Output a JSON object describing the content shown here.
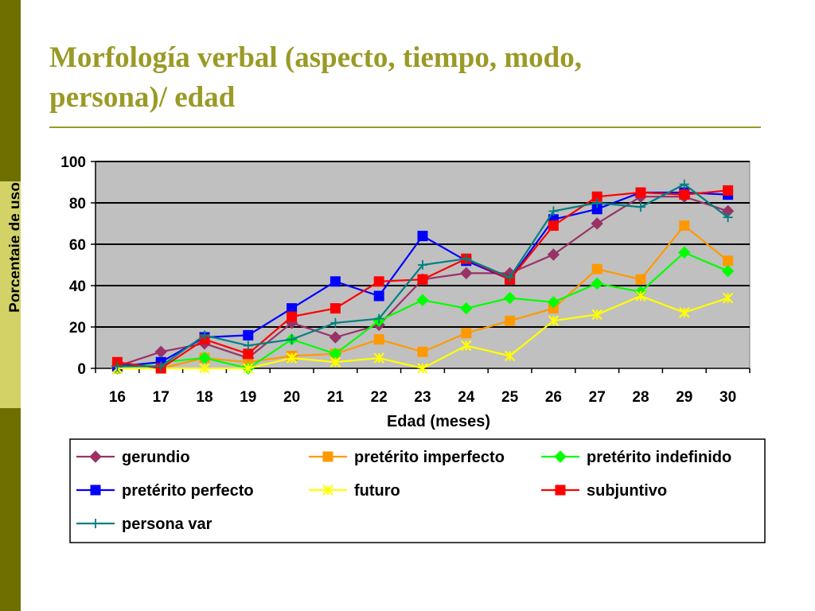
{
  "slide": {
    "title_line1": "Morfología verbal (aspecto, tiempo, modo,",
    "title_line2": "persona)/ edad",
    "y_label_clipped": "Porcentaje de uso",
    "colors": {
      "title": "#9a9a26",
      "rule": "#9a9a26",
      "strip_dark": "#6f6f00",
      "strip_light": "#d2d266"
    }
  },
  "chart_data": {
    "type": "line",
    "title": "",
    "xlabel": "Edad (meses)",
    "ylabel": "Porcentaje de uso",
    "ylim": [
      0,
      100
    ],
    "yticks": [
      0,
      20,
      40,
      60,
      80,
      100
    ],
    "grid": true,
    "plot_background": "#c0c0c0",
    "legend_position": "bottom",
    "x": [
      "16",
      "17",
      "18",
      "19",
      "20",
      "21",
      "22",
      "23",
      "24",
      "25",
      "26",
      "27",
      "28",
      "29",
      "30"
    ],
    "series": [
      {
        "name": "gerundio",
        "color": "#993366",
        "marker": "diamond",
        "values": [
          1,
          8,
          12,
          5,
          22,
          15,
          21,
          43,
          46,
          46,
          55,
          70,
          83,
          83,
          76
        ]
      },
      {
        "name": "pretérito imperfecto",
        "color": "#ff9900",
        "marker": "square",
        "values": [
          0,
          0,
          5,
          3,
          6,
          7,
          14,
          8,
          17,
          23,
          29,
          48,
          43,
          69,
          52
        ]
      },
      {
        "name": "pretérito indefinido",
        "color": "#00ff00",
        "marker": "diamond",
        "values": [
          0,
          3,
          5,
          0,
          14,
          7,
          23,
          33,
          29,
          34,
          32,
          41,
          37,
          56,
          47
        ]
      },
      {
        "name": "pretérito perfecto",
        "color": "#0000ff",
        "marker": "square",
        "values": [
          1,
          3,
          15,
          16,
          29,
          42,
          35,
          64,
          52,
          43,
          72,
          77,
          85,
          85,
          84
        ]
      },
      {
        "name": "futuro",
        "color": "#ffff00",
        "marker": "star",
        "values": [
          0,
          0,
          0,
          0,
          5,
          3,
          5,
          0,
          11,
          6,
          23,
          26,
          35,
          27,
          34
        ]
      },
      {
        "name": "subjuntivo",
        "color": "#ff0000",
        "marker": "square",
        "values": [
          3,
          0,
          14,
          7,
          25,
          29,
          42,
          43,
          53,
          43,
          69,
          83,
          85,
          84,
          86
        ]
      },
      {
        "name": "persona var",
        "color": "#008080",
        "marker": "plus",
        "values": [
          1,
          1,
          16,
          11,
          14,
          22,
          24,
          50,
          53,
          44,
          76,
          80,
          78,
          89,
          73
        ]
      }
    ]
  }
}
